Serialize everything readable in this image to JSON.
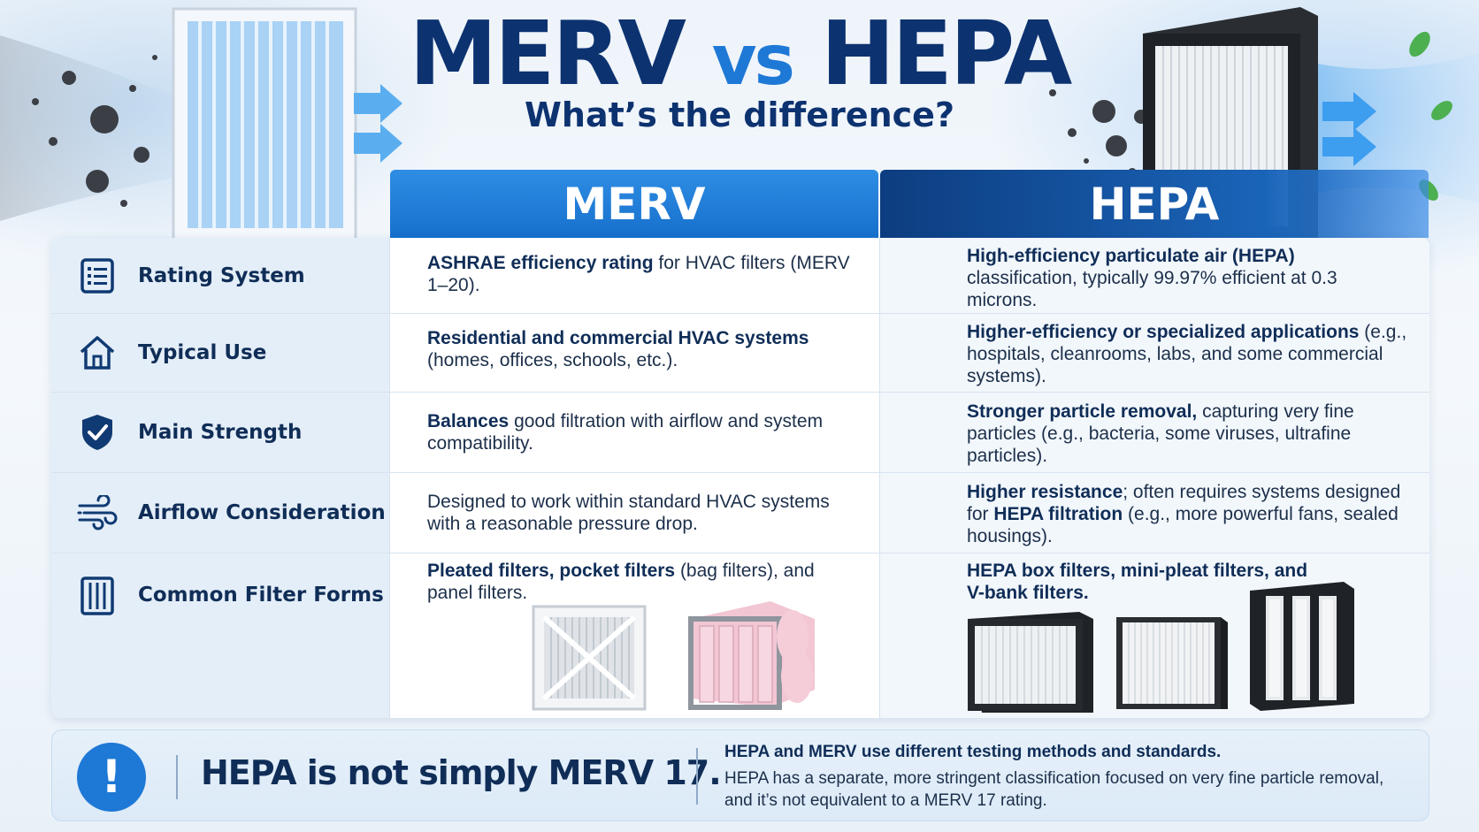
{
  "title": {
    "left": "MERV",
    "mid": "vs",
    "right": "HEPA"
  },
  "subtitle": "What’s the difference?",
  "columns": {
    "merv": "MERV",
    "hepa": "HEPA"
  },
  "rows": [
    {
      "label": "Rating System",
      "icon": "list-icon",
      "merv_bold": "ASHRAE efficiency rating",
      "merv_rest": " for HVAC filters (MERV 1–20).",
      "hepa_bold": "High-efficiency particulate air (HEPA)",
      "hepa_rest": " classification, typically 99.97% efficient at 0.3 microns."
    },
    {
      "label": "Typical Use",
      "icon": "home-icon",
      "merv_bold": "Residential and commercial HVAC systems",
      "merv_rest": " (homes, offices, schools, etc.).",
      "hepa_bold": "Higher-efficiency or specialized applications",
      "hepa_rest": " (e.g., hospitals, cleanrooms, labs, and some commercial systems)."
    },
    {
      "label": "Main Strength",
      "icon": "shield-check-icon",
      "merv_bold": "Balances",
      "merv_rest": " good filtration with airflow and system compatibility.",
      "hepa_bold": "Stronger particle removal,",
      "hepa_rest": " capturing very fine particles (e.g., bacteria, some viruses, ultrafine particles)."
    },
    {
      "label": "Airflow Consideration",
      "icon": "wind-icon",
      "merv_bold": "",
      "merv_rest": "Designed to work within standard HVAC systems with a reasonable pressure drop.",
      "hepa_bold": "Higher resistance",
      "hepa_rest": "; often requires systems designed for ",
      "hepa_bold2": "HEPA filtration",
      "hepa_rest2": " (e.g., more powerful fans, sealed housings)."
    },
    {
      "label": "Common Filter Forms",
      "icon": "filter-icon",
      "merv_bold": "Pleated filters, pocket filters",
      "merv_rest": " (bag filters), and panel filters.",
      "hepa_bold": "HEPA box filters, mini-pleat filters, and V-bank filters.",
      "hepa_rest": ""
    }
  ],
  "banner": {
    "icon": "!",
    "headline": "HEPA is not simply MERV 17.",
    "note_bold": "HEPA and MERV use different testing methods and standards.",
    "note": "HEPA has a separate, more stringent classification focused on very fine particle removal, and it’s not equivalent to a MERV 17 rating."
  },
  "colors": {
    "navy": "#0d3270",
    "blue": "#1e78d6",
    "hepa_header": "#0d3d80"
  }
}
